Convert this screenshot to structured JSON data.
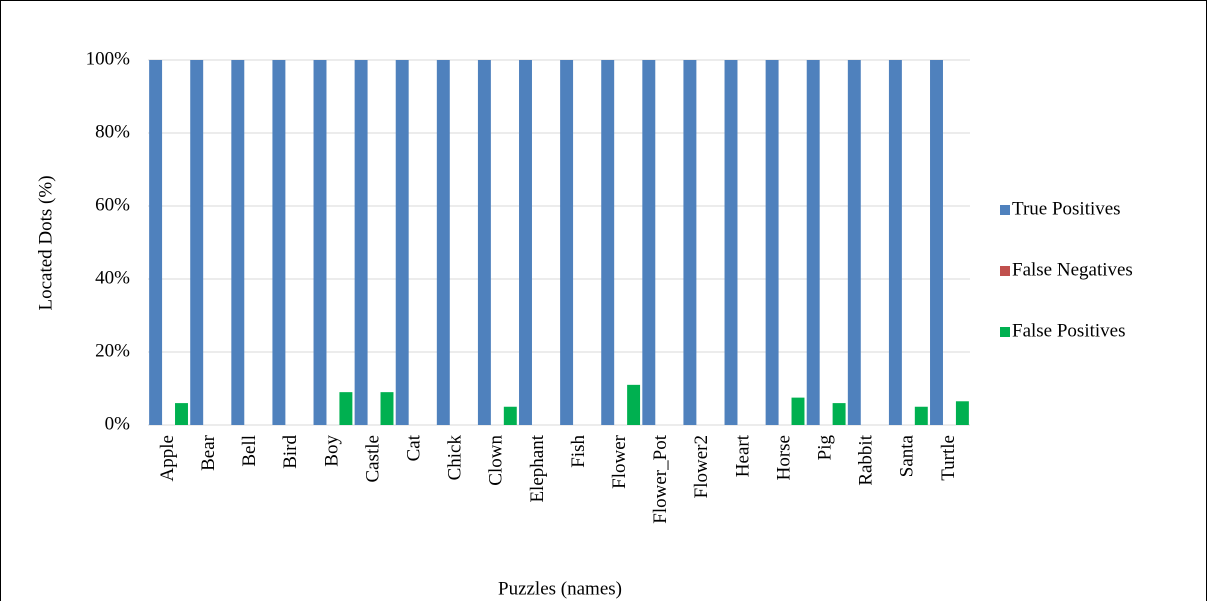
{
  "chart_data": {
    "type": "bar",
    "x_label": "Puzzles (names)",
    "y_label": "Located Dots (%)",
    "categories": [
      "Apple",
      "Bear",
      "Bell",
      "Bird",
      "Boy",
      "Castle",
      "Cat",
      "Chick",
      "Clown",
      "Elephant",
      "Fish",
      "Flower",
      "Flower_Pot",
      "Flower2",
      "Heart",
      "Horse",
      "Pig",
      "Rabbit",
      "Santa",
      "Turtle"
    ],
    "series": [
      {
        "name": "True Positives",
        "color": "#4f81bd",
        "values": [
          100,
          100,
          100,
          100,
          100,
          100,
          100,
          100,
          100,
          100,
          100,
          100,
          100,
          100,
          100,
          100,
          100,
          100,
          100,
          100
        ]
      },
      {
        "name": "False Negatives",
        "color": "#c0504d",
        "values": [
          0,
          0,
          0,
          0,
          0,
          0,
          0,
          0,
          0,
          0,
          0,
          0,
          0,
          0,
          0,
          0,
          0,
          0,
          0,
          0
        ]
      },
      {
        "name": "False Positives",
        "color": "#00b050",
        "values": [
          6,
          0,
          0,
          0,
          9,
          9,
          0,
          0,
          5,
          0,
          0,
          11,
          0,
          0,
          0,
          7.5,
          6,
          0,
          5,
          6.5
        ]
      }
    ],
    "ylim": [
      0,
      100
    ],
    "yticks": [
      {
        "value": 0,
        "label": "0%"
      },
      {
        "value": 20,
        "label": "20%"
      },
      {
        "value": 40,
        "label": "40%"
      },
      {
        "value": 60,
        "label": "60%"
      },
      {
        "value": 80,
        "label": "80%"
      },
      {
        "value": 100,
        "label": "100%"
      }
    ],
    "grid": true,
    "legend": "right"
  }
}
